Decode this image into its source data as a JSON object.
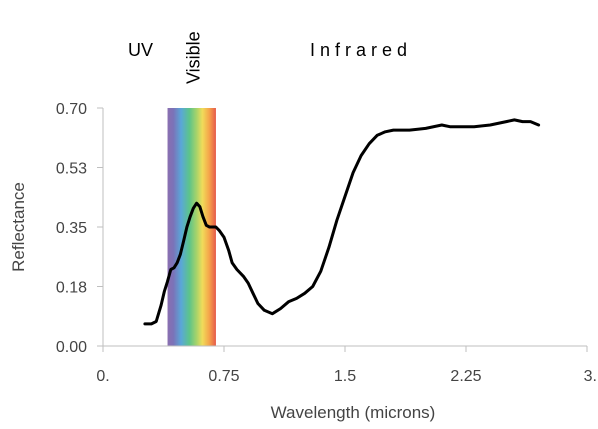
{
  "chart_data": {
    "type": "line",
    "title": "",
    "xlabel": "Wavelength (microns)",
    "ylabel": "Reflectance",
    "xlim": [
      0,
      3
    ],
    "ylim": [
      0,
      0.7
    ],
    "x_ticks": [
      0,
      0.75,
      1.5,
      2.25,
      3
    ],
    "x_tick_labels": [
      "0.",
      "0.75",
      "1.5",
      "2.25",
      "3."
    ],
    "y_ticks": [
      0,
      0.175,
      0.35,
      0.525,
      0.7
    ],
    "y_tick_labels": [
      "0.00",
      "0.18",
      "0.35",
      "0.53",
      "0.70"
    ],
    "grid": false,
    "regions": [
      {
        "label": "UV",
        "x": 0.2
      },
      {
        "label": "Visible",
        "x": 0.55,
        "orientation": "vertical"
      },
      {
        "label": "I n f r a r e d",
        "x": 1.6
      }
    ],
    "visible_band": {
      "range": [
        0.4,
        0.7
      ],
      "colors": [
        "#8a6fb0",
        "#7078c0",
        "#5aa7d8",
        "#5cc48a",
        "#a7d36a",
        "#f0dc5a",
        "#f5a54a",
        "#e65a4a"
      ]
    },
    "series": [
      {
        "color": "#000000",
        "points": [
          [
            0.26,
            0.065
          ],
          [
            0.3,
            0.065
          ],
          [
            0.33,
            0.072
          ],
          [
            0.36,
            0.12
          ],
          [
            0.38,
            0.16
          ],
          [
            0.4,
            0.19
          ],
          [
            0.42,
            0.225
          ],
          [
            0.44,
            0.23
          ],
          [
            0.46,
            0.245
          ],
          [
            0.48,
            0.27
          ],
          [
            0.5,
            0.31
          ],
          [
            0.52,
            0.35
          ],
          [
            0.54,
            0.38
          ],
          [
            0.56,
            0.405
          ],
          [
            0.58,
            0.42
          ],
          [
            0.6,
            0.41
          ],
          [
            0.62,
            0.38
          ],
          [
            0.64,
            0.355
          ],
          [
            0.66,
            0.35
          ],
          [
            0.7,
            0.35
          ],
          [
            0.72,
            0.34
          ],
          [
            0.75,
            0.32
          ],
          [
            0.78,
            0.28
          ],
          [
            0.8,
            0.245
          ],
          [
            0.83,
            0.225
          ],
          [
            0.87,
            0.205
          ],
          [
            0.9,
            0.185
          ],
          [
            0.93,
            0.155
          ],
          [
            0.96,
            0.125
          ],
          [
            1.0,
            0.105
          ],
          [
            1.05,
            0.095
          ],
          [
            1.1,
            0.11
          ],
          [
            1.15,
            0.13
          ],
          [
            1.2,
            0.14
          ],
          [
            1.25,
            0.155
          ],
          [
            1.3,
            0.175
          ],
          [
            1.35,
            0.22
          ],
          [
            1.4,
            0.29
          ],
          [
            1.45,
            0.37
          ],
          [
            1.5,
            0.44
          ],
          [
            1.55,
            0.51
          ],
          [
            1.6,
            0.56
          ],
          [
            1.65,
            0.595
          ],
          [
            1.7,
            0.62
          ],
          [
            1.75,
            0.63
          ],
          [
            1.8,
            0.635
          ],
          [
            1.9,
            0.635
          ],
          [
            2.0,
            0.64
          ],
          [
            2.1,
            0.65
          ],
          [
            2.15,
            0.645
          ],
          [
            2.2,
            0.645
          ],
          [
            2.3,
            0.645
          ],
          [
            2.4,
            0.65
          ],
          [
            2.5,
            0.66
          ],
          [
            2.55,
            0.665
          ],
          [
            2.6,
            0.66
          ],
          [
            2.65,
            0.66
          ],
          [
            2.7,
            0.65
          ]
        ]
      }
    ]
  }
}
